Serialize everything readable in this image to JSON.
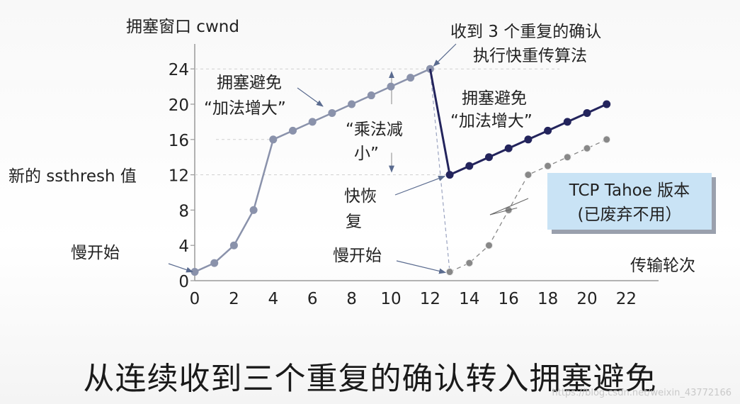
{
  "chart_data": {
    "type": "line",
    "ylabel": "拥塞窗口 cwnd",
    "xlabel": "传输轮次",
    "x_ticks": [
      0,
      2,
      4,
      6,
      8,
      10,
      12,
      14,
      16,
      18,
      20,
      22
    ],
    "y_ticks": [
      0,
      4,
      8,
      12,
      16,
      20,
      24
    ],
    "xlim": [
      0,
      22
    ],
    "ylim": [
      0,
      24
    ],
    "series": [
      {
        "name": "",
        "color": "#8a92ab",
        "x": [
          0,
          1,
          2,
          3,
          4,
          5,
          6,
          7,
          8,
          9,
          10,
          11,
          12
        ],
        "y": [
          1,
          2,
          4,
          8,
          16,
          17,
          18,
          19,
          20,
          21,
          22,
          23,
          24
        ]
      },
      {
        "name": "",
        "color": "#23245c",
        "x": [
          13,
          14,
          15,
          16,
          17,
          18,
          19,
          20,
          21
        ],
        "y": [
          12,
          13,
          14,
          15,
          16,
          17,
          18,
          19,
          20
        ]
      },
      {
        "name": "TCP Tahoe 版本",
        "color": "#888888",
        "style": "dotted",
        "x": [
          13,
          14,
          15,
          16,
          17,
          18,
          19,
          20,
          21
        ],
        "y": [
          1,
          2,
          4,
          8,
          12,
          13,
          14,
          15,
          16
        ]
      }
    ],
    "ssthresh_marks": [
      16,
      12
    ],
    "annotations": {
      "ssthresh": "新的 ssthresh 值",
      "slow_start_1": "慢开始",
      "slow_start_2": "慢开始",
      "ca1_l1": "拥塞避免",
      "ca1_l2": "“加法增大”",
      "ca2_l1": "拥塞避免",
      "ca2_l2": "“加法增大”",
      "md_l1": "“乘法减",
      "md_l2": "小”",
      "fr_l1": "快恢",
      "fr_l2": "复",
      "dup_l1": "收到 3 个重复的确认",
      "dup_l2": "执行快重传算法",
      "tahoe_l1": "TCP Tahoe 版本",
      "tahoe_l2": "(已废弃不用）"
    }
  },
  "caption": "从连续收到三个重复的确认转入拥塞避免",
  "watermark": "https://blog.csdn.net/weixin_43772166",
  "colors": {
    "axis": "#9a9a9a",
    "gridline": "#cfcfcf",
    "tahoe_box": "#c9e3f5",
    "text": "#222222"
  }
}
